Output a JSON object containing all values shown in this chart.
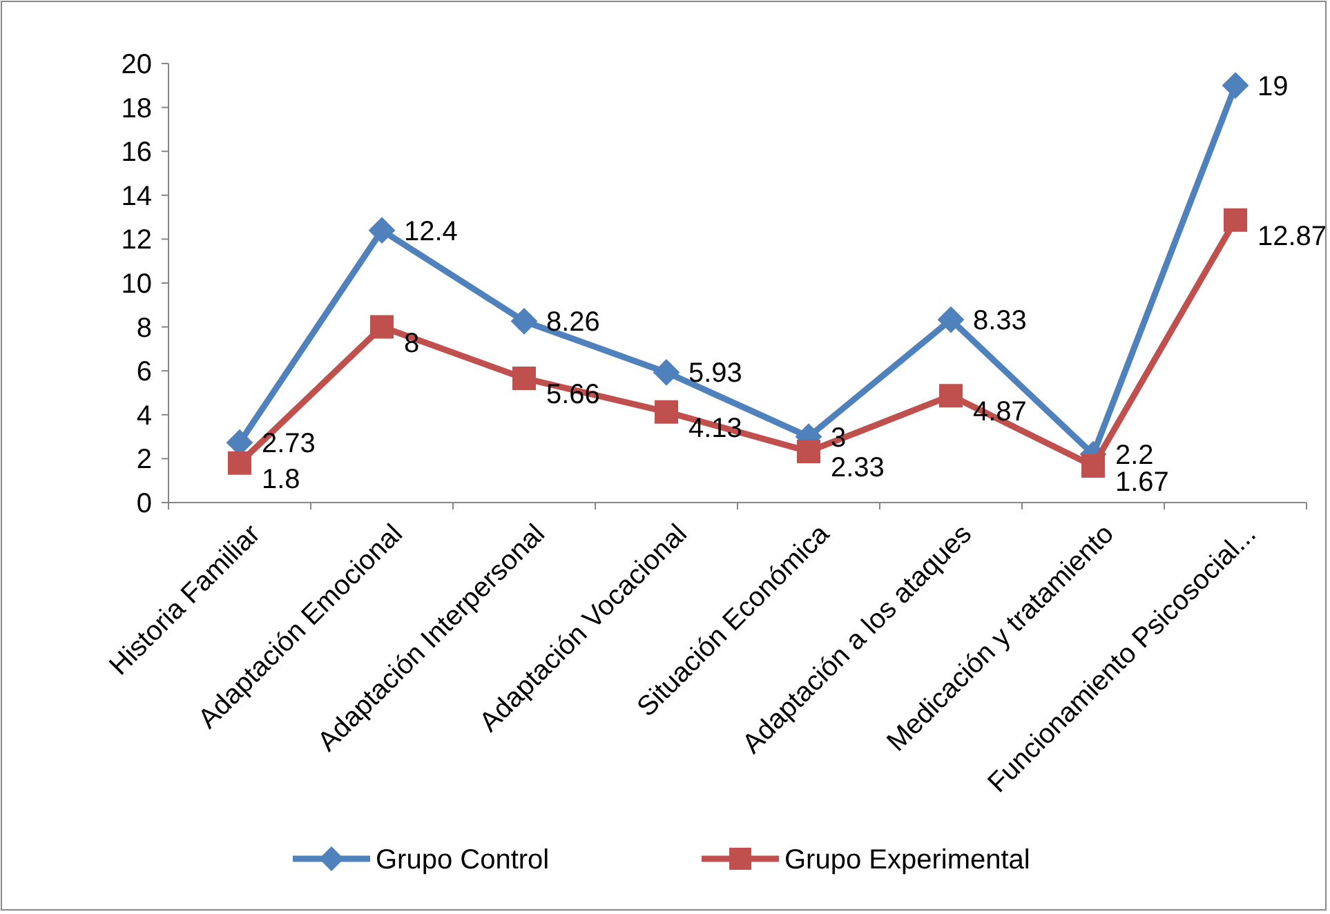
{
  "chart_data": {
    "type": "line",
    "categories": [
      "Historia Familiar",
      "Adaptación Emocional",
      "Adaptación Interpersonal",
      "Adaptación Vocacional",
      "Situación Económica",
      "Adaptación a los ataques",
      "Medicación y tratamiento",
      "Funcionamiento Psicosocial..."
    ],
    "series": [
      {
        "name": "Grupo Control",
        "color": "#4f81bd",
        "marker": "diamond",
        "values": [
          2.73,
          12.4,
          8.26,
          5.93,
          3,
          8.33,
          2.2,
          19
        ]
      },
      {
        "name": "Grupo Experimental",
        "color": "#c0504d",
        "marker": "square",
        "values": [
          1.8,
          8,
          5.66,
          4.13,
          2.33,
          4.87,
          1.67,
          12.87
        ]
      }
    ],
    "ylim": [
      0,
      20
    ],
    "yticks": [
      0,
      2,
      4,
      6,
      8,
      10,
      12,
      14,
      16,
      18,
      20
    ],
    "data_labels": true,
    "legend": "bottom",
    "grid": false
  }
}
